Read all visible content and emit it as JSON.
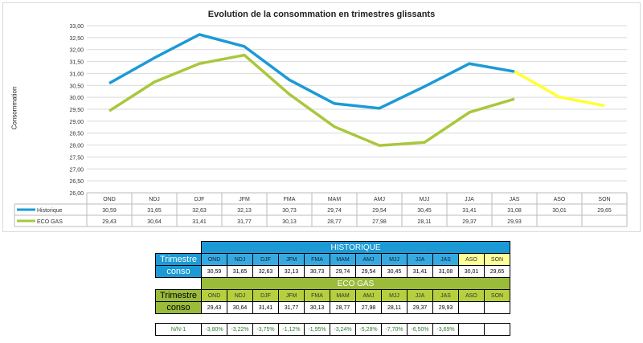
{
  "chart_data": {
    "type": "line",
    "title": "Evolution de la consommation en trimestres glissants",
    "ylabel": "Consommation",
    "xlabel": "",
    "ylim": [
      26,
      33
    ],
    "yticks": [
      "26,00",
      "26,50",
      "27,00",
      "27,50",
      "28,00",
      "28,50",
      "29,00",
      "29,50",
      "30,00",
      "30,50",
      "31,00",
      "31,50",
      "32,00",
      "32,50",
      "33,00"
    ],
    "categories": [
      "OND",
      "NDJ",
      "DJF",
      "JFM",
      "FMA",
      "MAM",
      "AMJ",
      "MJJ",
      "JJA",
      "JAS",
      "ASO",
      "SON"
    ],
    "series": [
      {
        "name": "Historique",
        "color": "#1b9ad6",
        "forecast_color": "#ffff33",
        "forecast_from_index": 9,
        "values": [
          30.59,
          31.65,
          32.63,
          32.13,
          30.73,
          29.74,
          29.54,
          30.45,
          31.41,
          31.08,
          30.01,
          29.65
        ],
        "labels": [
          "30,59",
          "31,65",
          "32,63",
          "32,13",
          "30,73",
          "29,74",
          "29,54",
          "30,45",
          "31,41",
          "31,08",
          "30,01",
          "29,65"
        ]
      },
      {
        "name": "ECO GAS",
        "color": "#a9c73c",
        "values": [
          29.43,
          30.64,
          31.41,
          31.77,
          30.13,
          28.77,
          27.98,
          28.11,
          29.37,
          29.93,
          null,
          null
        ],
        "labels": [
          "29,43",
          "30,64",
          "31,41",
          "31,77",
          "30,13",
          "28,77",
          "27,98",
          "28,11",
          "29,37",
          "29,93",
          "",
          ""
        ]
      }
    ],
    "grid": true,
    "legend": "data-table-bottom"
  },
  "tables": {
    "historique": {
      "title": "HISTORIQUE",
      "row1_label": "Trimestre",
      "row2_label": "conso"
    },
    "ecogas": {
      "title": "ECO GAS",
      "row1_label": "Trimestre",
      "row2_label": "conso"
    },
    "evolution": {
      "label": "N/N-1",
      "values": [
        "-3,80%",
        "-3,22%",
        "-3,75%",
        "-1,12%",
        "-1,95%",
        "-3,24%",
        "-5,28%",
        "-7,70%",
        "-6,50%",
        "-3,69%",
        "",
        ""
      ]
    }
  }
}
